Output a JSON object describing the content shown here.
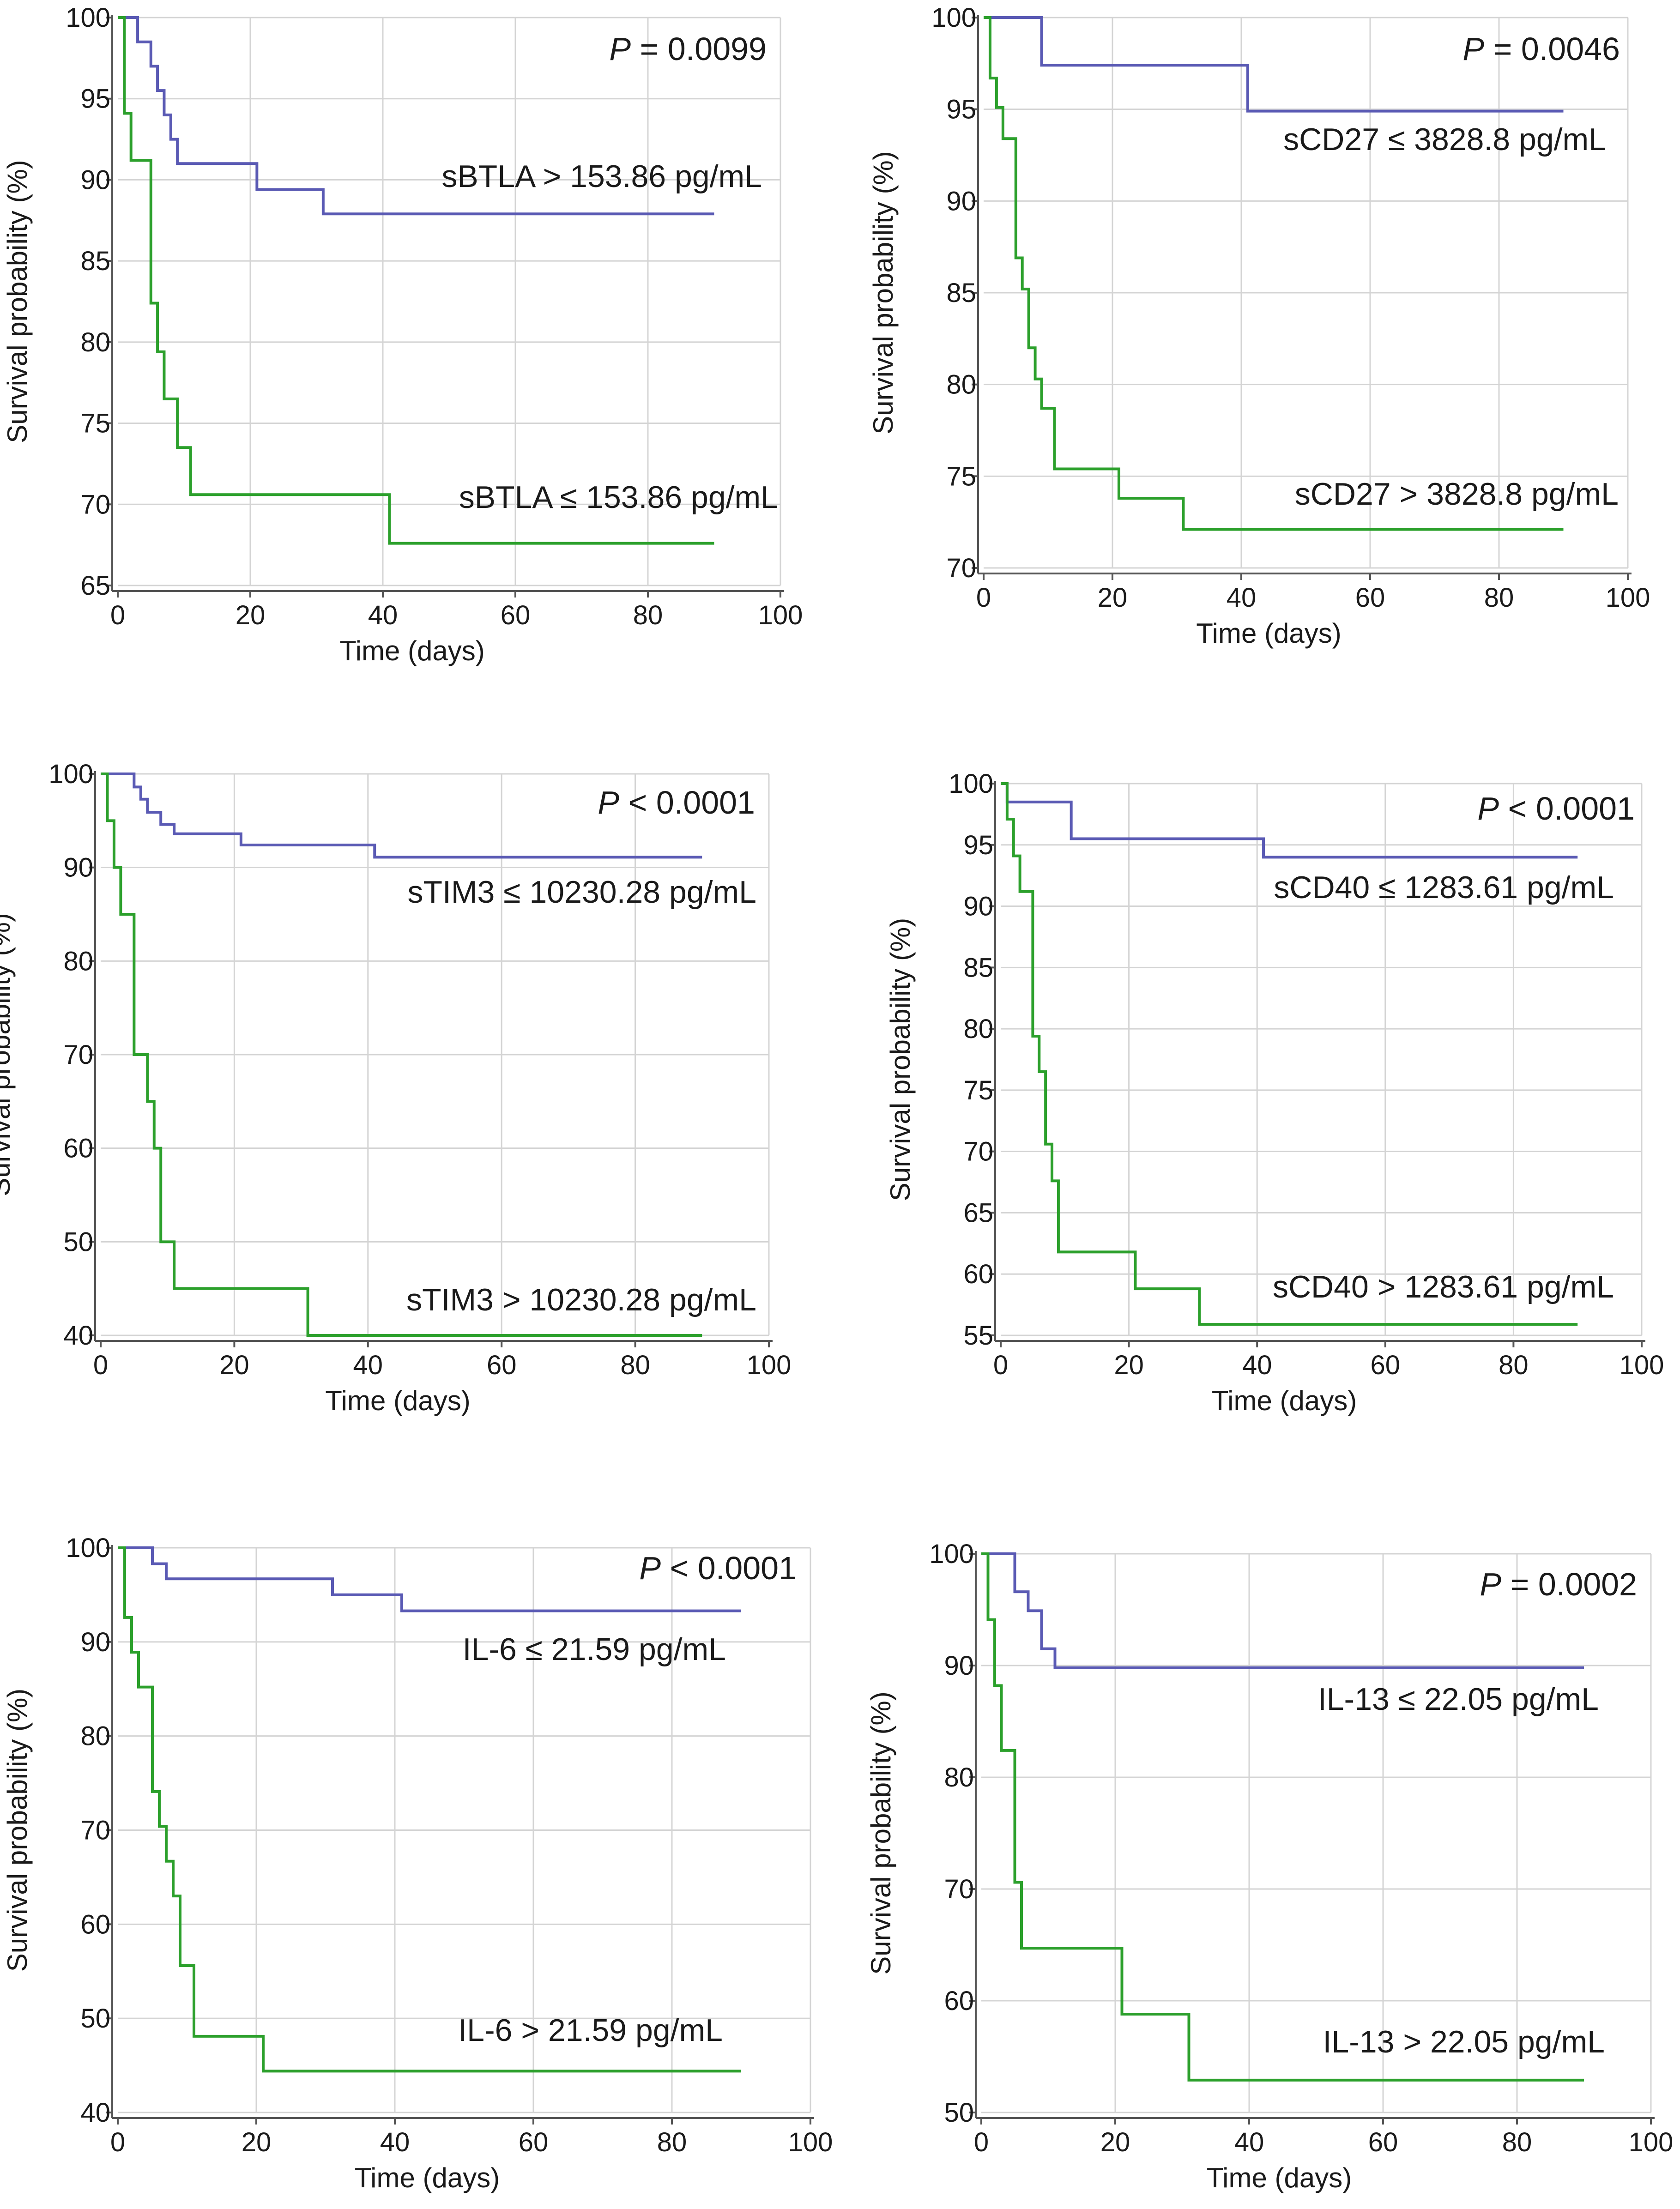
{
  "colors": {
    "high_survival": "#5a5ab4",
    "low_survival": "#2ca02c"
  },
  "chart_data": [
    {
      "type": "line",
      "subtype": "kaplan-meier step",
      "xlabel": "Time (days)",
      "ylabel": "Survival  probability  (%)",
      "xlim": [
        0,
        100
      ],
      "ylim": [
        65,
        100
      ],
      "xticks": [
        0,
        20,
        40,
        60,
        80,
        100
      ],
      "yticks": [
        65,
        70,
        75,
        80,
        85,
        90,
        95,
        100
      ],
      "p_label": "P",
      "p_text": " = 0.0099",
      "series": [
        {
          "name": "sBTLA > 153.86 pg/mL",
          "color": "#5a5ab4",
          "x": [
            0,
            3,
            5,
            6,
            7,
            8,
            9,
            11,
            21,
            31,
            90
          ],
          "y": [
            100,
            98.5,
            97,
            95.5,
            94,
            92.5,
            91,
            91,
            89.4,
            87.9,
            87.9
          ]
        },
        {
          "name": "sBTLA ≤ 153.86 pg/mL",
          "color": "#2ca02c",
          "x": [
            0,
            1,
            2,
            5,
            6,
            7,
            8,
            9,
            11,
            41,
            90
          ],
          "y": [
            100,
            94.1,
            91.2,
            82.4,
            79.4,
            76.5,
            76.5,
            73.5,
            70.6,
            67.6,
            67.6
          ]
        }
      ]
    },
    {
      "type": "line",
      "subtype": "kaplan-meier step",
      "xlabel": "Time (days)",
      "ylabel": "Survival  probability  (%)",
      "xlim": [
        0,
        100
      ],
      "ylim": [
        70,
        100
      ],
      "xticks": [
        0,
        20,
        40,
        60,
        80,
        100
      ],
      "yticks": [
        70,
        75,
        80,
        85,
        90,
        95,
        100
      ],
      "p_label": "P",
      "p_text": " = 0.0046",
      "series": [
        {
          "name": "sCD27 ≤ 3828.8 pg/mL",
          "color": "#5a5ab4",
          "x": [
            0,
            9,
            41,
            90
          ],
          "y": [
            100,
            97.4,
            94.9,
            94.9
          ]
        },
        {
          "name": "sCD27 > 3828.8 pg/mL",
          "color": "#2ca02c",
          "x": [
            0,
            1,
            2,
            3,
            5,
            6,
            7,
            8,
            9,
            11,
            21,
            31,
            90
          ],
          "y": [
            100,
            96.7,
            95.1,
            93.4,
            86.9,
            85.2,
            82.0,
            80.3,
            78.7,
            75.4,
            73.8,
            72.1,
            72.1
          ]
        }
      ]
    },
    {
      "type": "line",
      "subtype": "kaplan-meier step",
      "xlabel": "Time (days)",
      "ylabel": "Survival  probability  (%)",
      "xlim": [
        0,
        100
      ],
      "ylim": [
        40,
        100
      ],
      "xticks": [
        0,
        20,
        40,
        60,
        80,
        100
      ],
      "yticks": [
        40,
        50,
        60,
        70,
        80,
        90,
        100
      ],
      "p_label": "P",
      "p_text": " < 0.0001",
      "series": [
        {
          "name": "sTIM3 ≤ 10230.28 pg/mL",
          "color": "#5a5ab4",
          "x": [
            0,
            5,
            6,
            7,
            9,
            11,
            21,
            41,
            90
          ],
          "y": [
            100,
            98.6,
            97.3,
            95.9,
            94.6,
            93.6,
            92.4,
            91.1,
            91.1
          ]
        },
        {
          "name": "sTIM3 > 10230.28 pg/mL",
          "color": "#2ca02c",
          "x": [
            0,
            1,
            2,
            3,
            5,
            7,
            8,
            9,
            11,
            31,
            90
          ],
          "y": [
            100,
            95,
            90,
            85,
            70,
            65,
            60,
            50,
            45,
            40,
            40
          ]
        }
      ]
    },
    {
      "type": "line",
      "subtype": "kaplan-meier step",
      "xlabel": "Time (days)",
      "ylabel": "Survival  probability  (%)",
      "xlim": [
        0,
        100
      ],
      "ylim": [
        55,
        100
      ],
      "xticks": [
        0,
        20,
        40,
        60,
        80,
        100
      ],
      "yticks": [
        55,
        60,
        65,
        70,
        75,
        80,
        85,
        90,
        95,
        100
      ],
      "p_label": "P",
      "p_text": " < 0.0001",
      "series": [
        {
          "name": "sCD40 ≤ 1283.61 pg/mL",
          "color": "#5a5ab4",
          "x": [
            0,
            1,
            11,
            41,
            90
          ],
          "y": [
            100,
            98.5,
            95.5,
            94,
            94
          ]
        },
        {
          "name": "sCD40 > 1283.61 pg/mL",
          "color": "#2ca02c",
          "x": [
            0,
            1,
            2,
            3,
            5,
            6,
            7,
            8,
            9,
            21,
            31,
            90
          ],
          "y": [
            100,
            97.1,
            94.1,
            91.2,
            79.4,
            76.5,
            70.6,
            67.6,
            61.8,
            58.8,
            55.9,
            55.9
          ]
        }
      ]
    },
    {
      "type": "line",
      "subtype": "kaplan-meier step",
      "xlabel": "Time (days)",
      "ylabel": "Survival  probability  (%)",
      "xlim": [
        0,
        100
      ],
      "ylim": [
        40,
        100
      ],
      "xticks": [
        0,
        20,
        40,
        60,
        80,
        100
      ],
      "yticks": [
        40,
        50,
        60,
        70,
        80,
        90,
        100
      ],
      "p_label": "P",
      "p_text": " < 0.0001",
      "series": [
        {
          "name": "IL-6 ≤ 21.59 pg/mL",
          "color": "#5a5ab4",
          "x": [
            0,
            5,
            7,
            31,
            41,
            90
          ],
          "y": [
            100,
            98.3,
            96.7,
            95,
            93.3,
            93.3
          ]
        },
        {
          "name": "IL-6 > 21.59 pg/mL",
          "color": "#2ca02c",
          "x": [
            0,
            1,
            2,
            3,
            5,
            6,
            7,
            8,
            9,
            11,
            21,
            90
          ],
          "y": [
            100,
            92.6,
            88.9,
            85.2,
            74.1,
            70.4,
            66.7,
            63.0,
            55.6,
            48.1,
            44.4,
            44.4
          ]
        }
      ]
    },
    {
      "type": "line",
      "subtype": "kaplan-meier step",
      "xlabel": "Time (days)",
      "ylabel": "Survival  probability  (%)",
      "xlim": [
        0,
        100
      ],
      "ylim": [
        50,
        100
      ],
      "xticks": [
        0,
        20,
        40,
        60,
        80,
        100
      ],
      "yticks": [
        50,
        60,
        70,
        80,
        90,
        100
      ],
      "p_label": "P",
      "p_text": " = 0.0002",
      "series": [
        {
          "name": "IL-13 ≤ 22.05 pg/mL",
          "color": "#5a5ab4",
          "x": [
            0,
            5,
            7,
            9,
            11,
            90
          ],
          "y": [
            100,
            96.6,
            94.9,
            91.5,
            89.8,
            89.8
          ]
        },
        {
          "name": "IL-13 > 22.05 pg/mL",
          "color": "#2ca02c",
          "x": [
            0,
            1,
            2,
            3,
            5,
            6,
            21,
            31,
            90
          ],
          "y": [
            100,
            94.1,
            88.2,
            82.4,
            70.6,
            64.7,
            58.8,
            52.9,
            52.9
          ]
        }
      ]
    }
  ]
}
